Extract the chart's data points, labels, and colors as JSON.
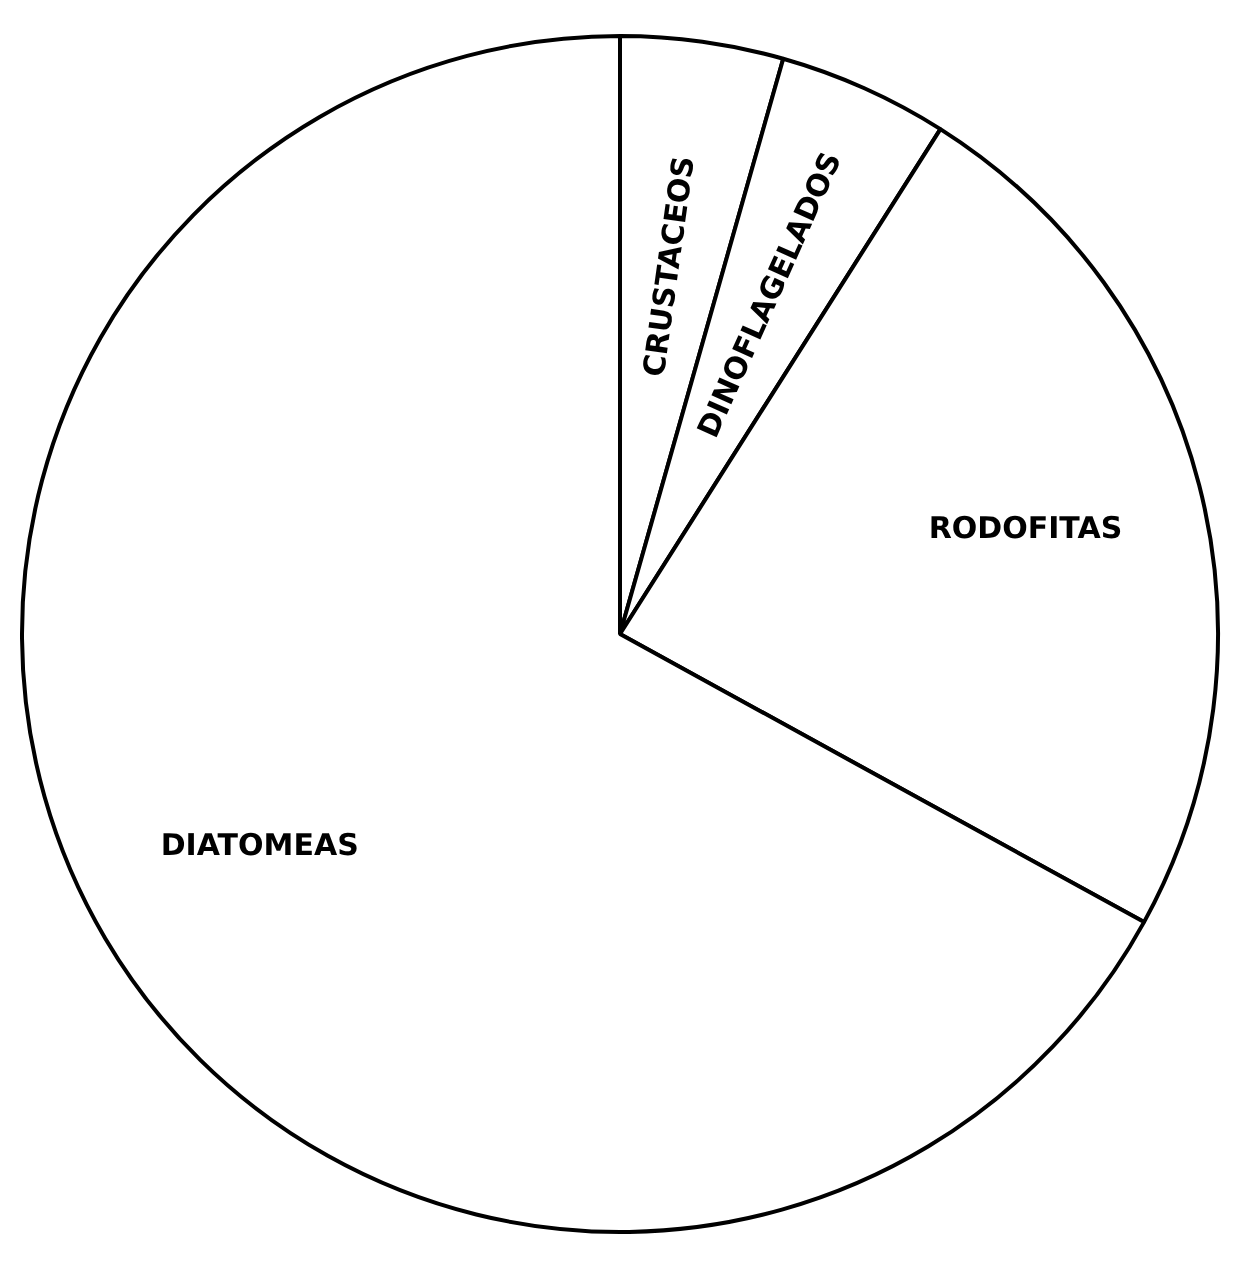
{
  "chart_data": {
    "type": "pie",
    "categories": [
      "CRUSTACEOS",
      "DINOFLAGELADOS",
      "RODOFITAS",
      "DIATOMEAS"
    ],
    "values": [
      4.4,
      4.6,
      24,
      67
    ],
    "colors": [
      "#ffffff",
      "#ffffff",
      "#ffffff",
      "#ffffff"
    ],
    "legend": false
  }
}
